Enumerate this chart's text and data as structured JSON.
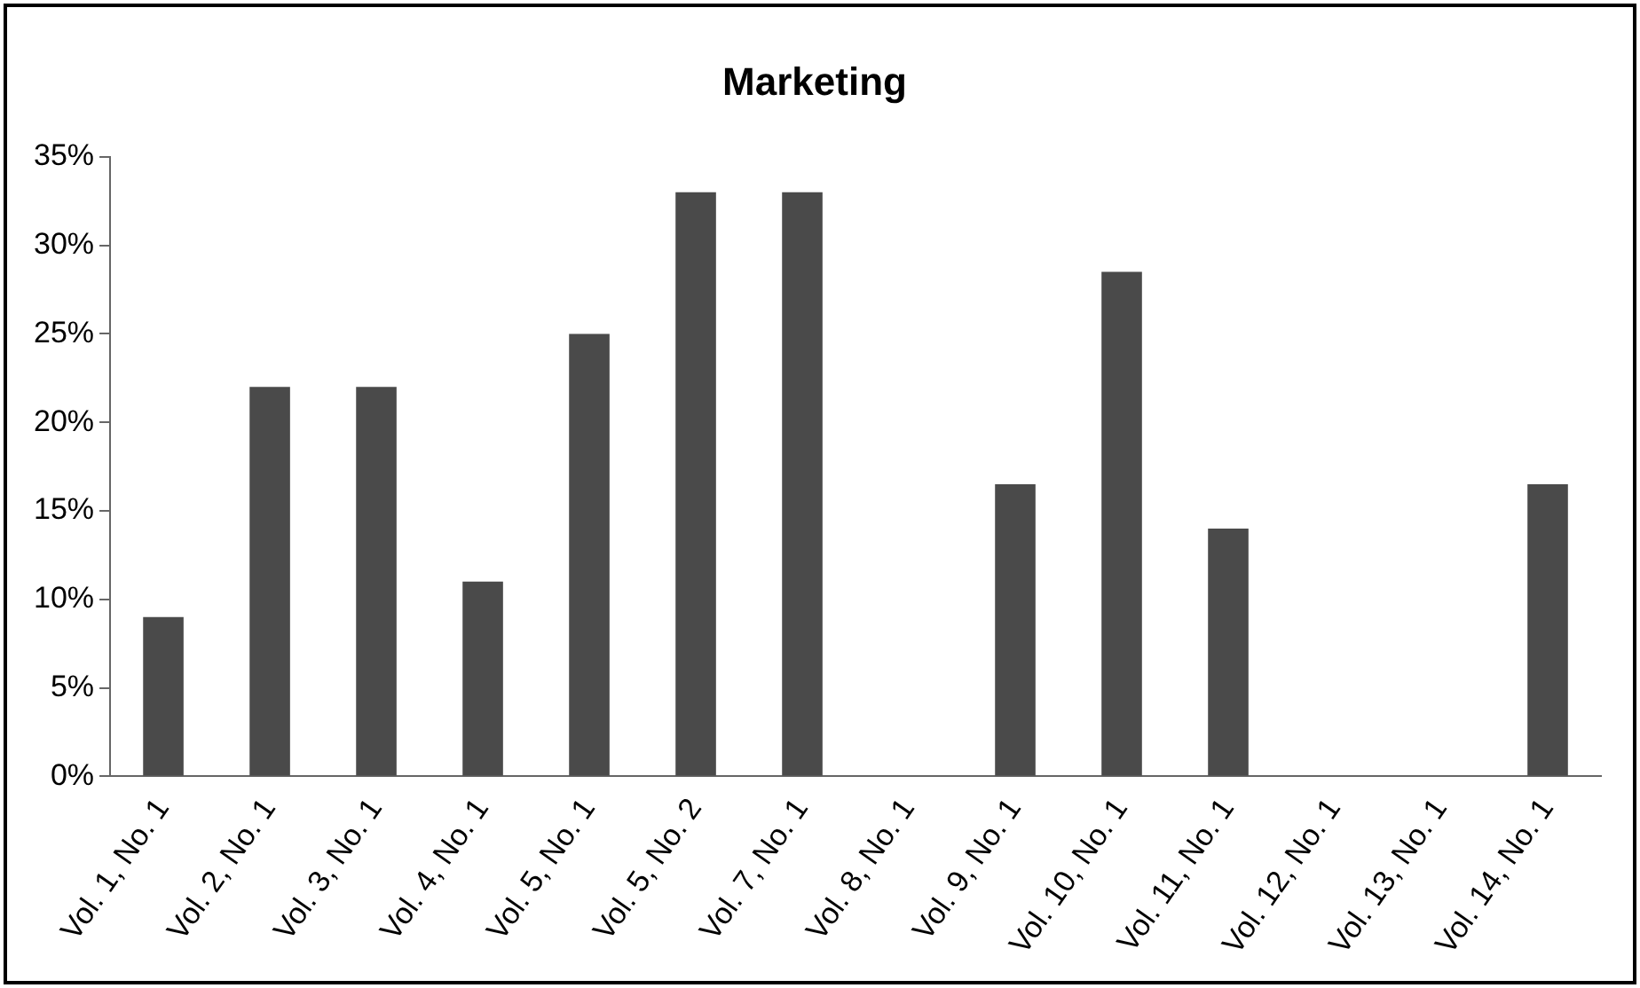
{
  "chart_data": {
    "type": "bar",
    "title": "Marketing",
    "categories": [
      "Vol. 1, No. 1",
      "Vol. 2, No. 1",
      "Vol. 3, No. 1",
      "Vol. 4, No. 1",
      "Vol. 5, No. 1",
      "Vol. 5, No. 2",
      "Vol. 7, No. 1",
      "Vol. 8, No. 1",
      "Vol. 9, No. 1",
      "Vol. 10, No. 1",
      "Vol. 11, No. 1",
      "Vol. 12, No. 1",
      "Vol. 13, No. 1",
      "Vol. 14, No. 1"
    ],
    "values": [
      9,
      22,
      22,
      11,
      25,
      33,
      33,
      0,
      16.5,
      28.5,
      14,
      0,
      0,
      16.5
    ],
    "color": "#4a4a4a",
    "ylim": [
      0,
      35
    ],
    "yticks": [
      {
        "value": 0,
        "label": "0%"
      },
      {
        "value": 5,
        "label": "5%"
      },
      {
        "value": 10,
        "label": "10%"
      },
      {
        "value": 15,
        "label": "15%"
      },
      {
        "value": 20,
        "label": "20%"
      },
      {
        "value": 25,
        "label": "25%"
      },
      {
        "value": 30,
        "label": "30%"
      },
      {
        "value": 35,
        "label": "35%"
      }
    ],
    "grid": false,
    "legend": false
  }
}
